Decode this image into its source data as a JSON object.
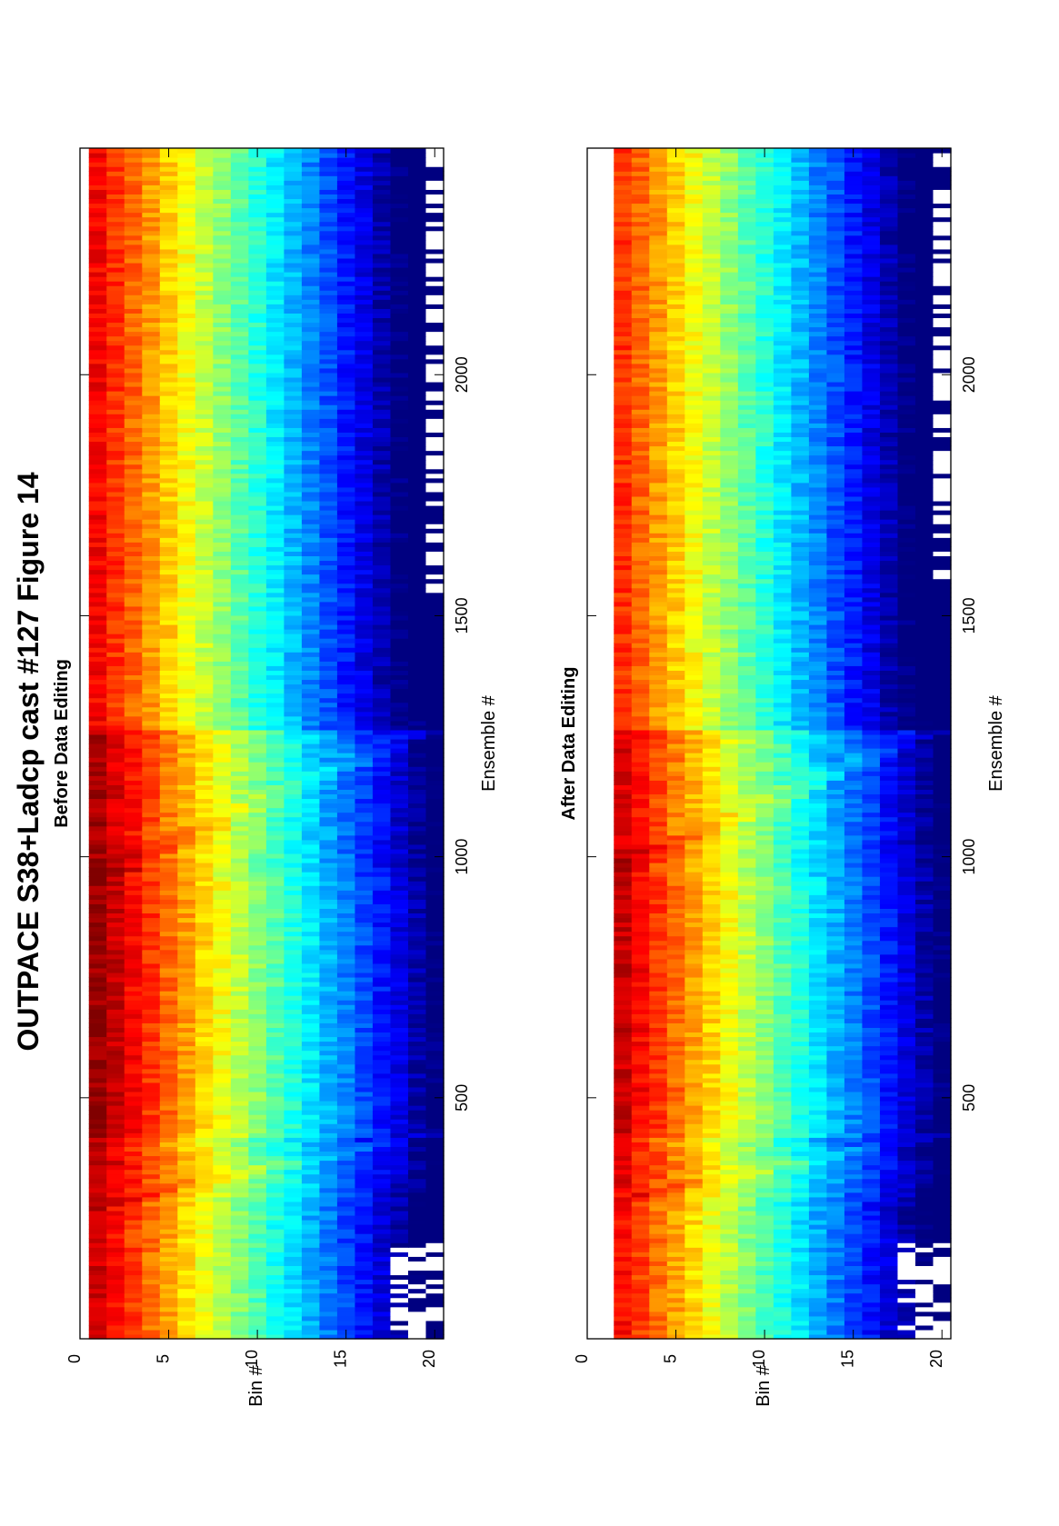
{
  "figure": {
    "title": "OUTPACE S38+Ladcp cast #127  Figure 14"
  },
  "chart_data": [
    {
      "type": "heatmap",
      "title": "Before Data Editing",
      "xlabel": "Ensemble #",
      "ylabel": "Bin #",
      "xlim": [
        0,
        2470
      ],
      "ylim": [
        0,
        20.5
      ],
      "xticks": [
        500,
        1000,
        1500,
        2000
      ],
      "yticks": [
        0,
        5,
        10,
        15,
        20
      ],
      "bins": 20,
      "colormap": "jet",
      "orientation": "figure rotated 90 degrees counter-clockwise",
      "features": {
        "descents": [
          {
            "start": 280,
            "end": 420
          },
          {
            "start": 950,
            "end": 1260
          }
        ],
        "white_gaps": [
          "bins 18-20 at ensembles 0-200",
          "bin 20 at ensembles 1550-2470"
        ]
      }
    },
    {
      "type": "heatmap",
      "title": "After Data Editing",
      "xlabel": "Ensemble #",
      "ylabel": "Bin #",
      "xlim": [
        0,
        2470
      ],
      "ylim": [
        0,
        20.5
      ],
      "xticks": [
        500,
        1000,
        1500,
        2000
      ],
      "yticks": [
        0,
        5,
        10,
        15,
        20
      ],
      "bins": 20,
      "colormap": "jet",
      "orientation": "figure rotated 90 degrees counter-clockwise",
      "features": {
        "descents": [
          {
            "start": 280,
            "end": 420
          },
          {
            "start": 950,
            "end": 1260
          }
        ],
        "white_gaps": [
          "bins 0-1 blank",
          "bins 18-20 at ensembles 0-200",
          "bin 20 at ensembles 1550-2470"
        ]
      }
    }
  ]
}
